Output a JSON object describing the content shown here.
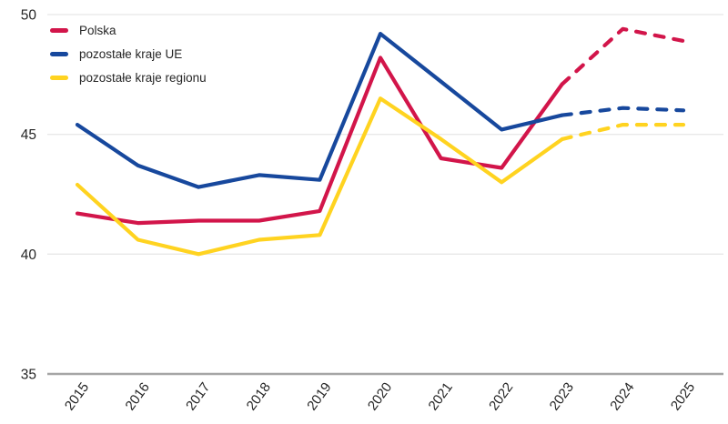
{
  "chart_data": {
    "type": "line",
    "title": "",
    "xlabel": "",
    "ylabel": "",
    "categories": [
      "2015",
      "2016",
      "2017",
      "2018",
      "2019",
      "2020",
      "2021",
      "2022",
      "2023",
      "2024",
      "2025"
    ],
    "series": [
      {
        "name": "Polska",
        "color": "#D2154A",
        "values": [
          41.7,
          41.3,
          41.4,
          41.4,
          41.8,
          48.2,
          44.0,
          43.6,
          47.1,
          49.4,
          48.9
        ],
        "dashed_from_category": "2023"
      },
      {
        "name": "pozostałe kraje UE",
        "color": "#17489D",
        "values": [
          45.4,
          43.7,
          42.8,
          43.3,
          43.1,
          49.2,
          47.2,
          45.2,
          45.8,
          46.1,
          46.0
        ],
        "dashed_from_category": "2023"
      },
      {
        "name": "pozostałe kraje regionu",
        "color": "#FFD320",
        "values": [
          42.9,
          40.6,
          40.0,
          40.6,
          40.8,
          46.5,
          44.8,
          43.0,
          44.8,
          45.4,
          45.4
        ],
        "dashed_from_category": "2023"
      }
    ],
    "ylim": [
      35,
      50
    ],
    "yticks": [
      35,
      40,
      45,
      50
    ],
    "grid": "horizontal",
    "legend_position": "top-left",
    "axis_text_color": "#262626",
    "gridline_color": "#E8E8E8",
    "baseline_color": "#A6A6A6"
  }
}
